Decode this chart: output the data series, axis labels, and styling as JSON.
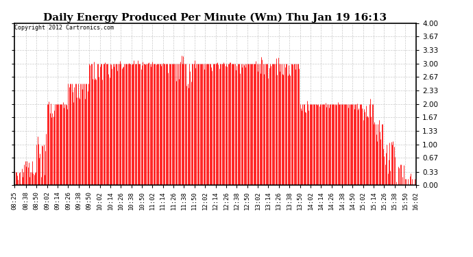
{
  "title": "Daily Energy Produced Per Minute (Wm) Thu Jan 19 16:13",
  "copyright": "Copyright 2012 Cartronics.com",
  "ylim": [
    0.0,
    4.0
  ],
  "yticks": [
    0.0,
    0.33,
    0.67,
    1.0,
    1.33,
    1.67,
    2.0,
    2.33,
    2.67,
    3.0,
    3.33,
    3.67,
    4.0
  ],
  "bar_color": "#ff0000",
  "background_color": "#ffffff",
  "grid_color": "#bbbbbb",
  "title_fontsize": 11,
  "copyright_fontsize": 6,
  "tick_fontsize": 6.5,
  "time_start_minutes": 505,
  "time_end_minutes": 962,
  "x_tick_labels": [
    "08:25",
    "08:38",
    "08:50",
    "09:02",
    "09:14",
    "09:26",
    "09:38",
    "09:50",
    "10:02",
    "10:14",
    "10:26",
    "10:38",
    "10:50",
    "11:02",
    "11:14",
    "11:26",
    "11:38",
    "11:50",
    "12:02",
    "12:14",
    "12:26",
    "12:38",
    "12:50",
    "13:02",
    "13:14",
    "13:26",
    "13:38",
    "13:50",
    "14:02",
    "14:14",
    "14:26",
    "14:38",
    "14:50",
    "15:02",
    "15:14",
    "15:26",
    "15:38",
    "15:50",
    "16:02"
  ],
  "x_tick_positions": [
    505,
    518,
    530,
    542,
    554,
    566,
    578,
    590,
    602,
    614,
    626,
    638,
    650,
    662,
    674,
    686,
    698,
    710,
    722,
    734,
    746,
    758,
    770,
    782,
    794,
    806,
    818,
    830,
    842,
    854,
    866,
    878,
    890,
    902,
    914,
    926,
    938,
    950,
    962
  ],
  "segments": [
    {
      "t_start": 505,
      "t_end": 516,
      "base": 0.33,
      "noise": 0.4,
      "noise_prob": 0.7
    },
    {
      "t_start": 516,
      "t_end": 530,
      "base": 0.6,
      "noise": 0.7,
      "noise_prob": 0.8
    },
    {
      "t_start": 530,
      "t_end": 542,
      "base": 1.0,
      "noise": 1.0,
      "noise_prob": 0.9
    },
    {
      "t_start": 542,
      "t_end": 554,
      "base": 2.0,
      "noise": 0.5,
      "noise_prob": 0.5
    },
    {
      "t_start": 554,
      "t_end": 566,
      "base": 2.0,
      "noise": 0.3,
      "noise_prob": 0.4
    },
    {
      "t_start": 566,
      "t_end": 590,
      "base": 2.5,
      "noise": 0.6,
      "noise_prob": 0.6
    },
    {
      "t_start": 590,
      "t_end": 614,
      "base": 3.0,
      "noise": 0.5,
      "noise_prob": 0.5
    },
    {
      "t_start": 614,
      "t_end": 686,
      "base": 3.0,
      "noise": 0.3,
      "noise_prob": 0.3
    },
    {
      "t_start": 686,
      "t_end": 710,
      "base": 3.0,
      "noise": 0.8,
      "noise_prob": 0.2
    },
    {
      "t_start": 710,
      "t_end": 734,
      "base": 3.0,
      "noise": 0.3,
      "noise_prob": 0.2
    },
    {
      "t_start": 734,
      "t_end": 782,
      "base": 3.0,
      "noise": 0.3,
      "noise_prob": 0.3
    },
    {
      "t_start": 782,
      "t_end": 806,
      "base": 3.0,
      "noise": 0.6,
      "noise_prob": 0.5
    },
    {
      "t_start": 806,
      "t_end": 830,
      "base": 3.0,
      "noise": 0.5,
      "noise_prob": 0.5
    },
    {
      "t_start": 830,
      "t_end": 842,
      "base": 2.0,
      "noise": 0.3,
      "noise_prob": 0.3
    },
    {
      "t_start": 842,
      "t_end": 902,
      "base": 2.0,
      "noise": 0.2,
      "noise_prob": 0.2
    },
    {
      "t_start": 902,
      "t_end": 914,
      "base": 2.0,
      "noise": 0.5,
      "noise_prob": 0.5
    },
    {
      "t_start": 914,
      "t_end": 926,
      "base": 1.5,
      "noise": 0.8,
      "noise_prob": 0.7
    },
    {
      "t_start": 926,
      "t_end": 938,
      "base": 1.0,
      "noise": 0.9,
      "noise_prob": 0.8
    },
    {
      "t_start": 938,
      "t_end": 950,
      "base": 0.5,
      "noise": 0.8,
      "noise_prob": 0.85
    },
    {
      "t_start": 950,
      "t_end": 962,
      "base": 0.15,
      "noise": 0.5,
      "noise_prob": 0.7
    },
    {
      "t_start": 962,
      "t_end": 963,
      "base": 0.05,
      "noise": 0.0,
      "noise_prob": 0.0
    }
  ]
}
